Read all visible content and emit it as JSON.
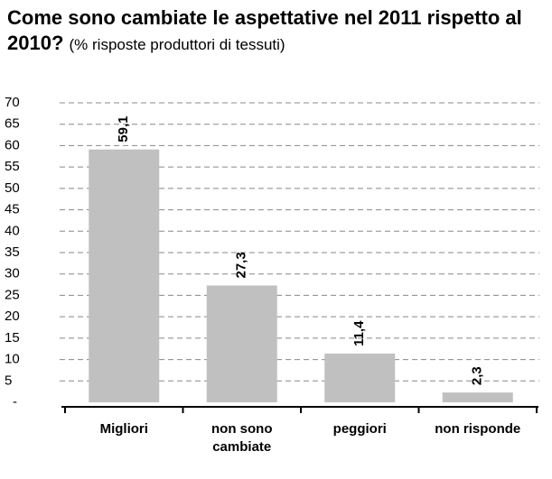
{
  "chart_data": {
    "type": "bar",
    "title": "Come sono cambiate le aspettative nel 2011 rispetto al 2010?",
    "subtitle": "(% risposte produttori di tessuti)",
    "categories": [
      "Migliori",
      "non sono cambiate",
      "peggiori",
      "non risponde"
    ],
    "values": [
      59.1,
      27.3,
      11.4,
      2.3
    ],
    "value_labels": [
      "59,1",
      "27,3",
      "11,4",
      "2,3"
    ],
    "color": "#c0c0c0",
    "ylim": [
      0,
      70
    ],
    "yticks": [
      {
        "value": 0,
        "label": "-"
      },
      5,
      10,
      15,
      20,
      25,
      30,
      35,
      40,
      45,
      50,
      55,
      60,
      65,
      70
    ],
    "grid": true
  }
}
